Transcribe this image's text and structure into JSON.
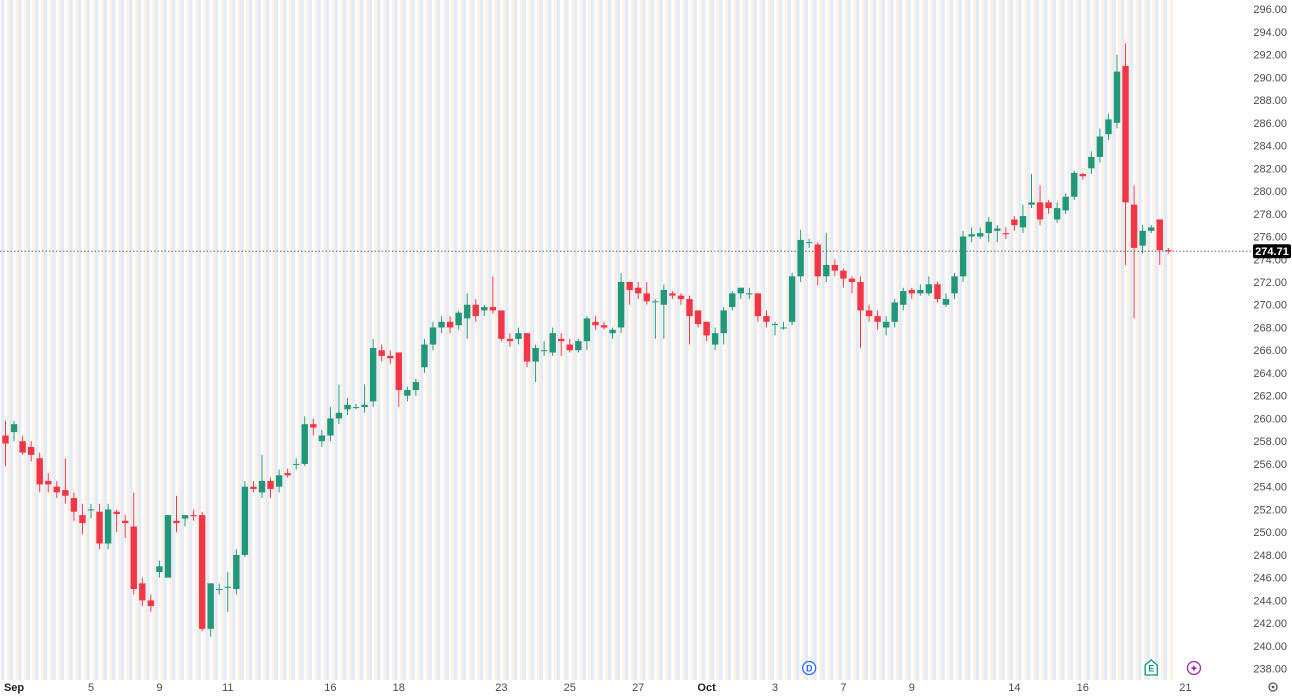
{
  "chart_data": {
    "type": "candlestick",
    "colors": {
      "up": "#22977a",
      "down": "#f23645",
      "band_blue": "#e3ebfb",
      "band_orange": "#fdf1df",
      "last_price_line": "#555555",
      "last_price_badge": "#000000"
    },
    "y_axis": {
      "min": 237,
      "max": 296.8,
      "ticks": [
        "296.00",
        "294.00",
        "292.00",
        "290.00",
        "288.00",
        "286.00",
        "284.00",
        "282.00",
        "280.00",
        "278.00",
        "276.00",
        "274.00",
        "272.00",
        "270.00",
        "268.00",
        "266.00",
        "264.00",
        "262.00",
        "260.00",
        "258.00",
        "256.00",
        "254.00",
        "252.00",
        "250.00",
        "248.00",
        "246.00",
        "244.00",
        "242.00",
        "240.00",
        "238.00"
      ]
    },
    "x_axis": {
      "labels": [
        {
          "text": "Sep",
          "bar": 1,
          "bold": true
        },
        {
          "text": "5",
          "bar": 10
        },
        {
          "text": "9",
          "bar": 18
        },
        {
          "text": "11",
          "bar": 26
        },
        {
          "text": "16",
          "bar": 38
        },
        {
          "text": "18",
          "bar": 46
        },
        {
          "text": "23",
          "bar": 58
        },
        {
          "text": "25",
          "bar": 66
        },
        {
          "text": "27",
          "bar": 74
        },
        {
          "text": "Oct",
          "bar": 82,
          "bold": true
        },
        {
          "text": "3",
          "bar": 90
        },
        {
          "text": "7",
          "bar": 98
        },
        {
          "text": "9",
          "bar": 106
        },
        {
          "text": "14",
          "bar": 118
        },
        {
          "text": "16",
          "bar": 126
        },
        {
          "text": "21",
          "bar": 138
        }
      ]
    },
    "last_price": "274.71",
    "last_price_value": 274.71,
    "event_markers": [
      {
        "text": "D",
        "bar": 94,
        "color": "#2962ff"
      },
      {
        "text": "E",
        "bar": 134,
        "color": "#089981"
      },
      {
        "text": "✦",
        "bar": 139,
        "color": "#9c27b0"
      }
    ],
    "candles": [
      [
        258.5,
        257.8,
        259.8,
        255.8
      ],
      [
        258.8,
        259.5,
        259.8,
        258.0
      ],
      [
        258.0,
        257.0,
        258.5,
        256.8
      ],
      [
        257.5,
        256.8,
        258.0,
        256.2
      ],
      [
        256.5,
        254.2,
        257.0,
        253.5
      ],
      [
        254.5,
        254.2,
        255.2,
        253.5
      ],
      [
        254.0,
        253.5,
        254.5,
        253.0
      ],
      [
        253.7,
        253.2,
        256.5,
        252.5
      ],
      [
        253.0,
        251.8,
        253.5,
        251.0
      ],
      [
        251.5,
        250.8,
        252.5,
        249.8
      ],
      [
        252.0,
        252.0,
        252.5,
        251.2
      ],
      [
        251.8,
        249.0,
        252.5,
        248.5
      ],
      [
        249.0,
        252.0,
        252.5,
        248.5
      ],
      [
        251.8,
        251.6,
        252.0,
        250.0
      ],
      [
        251.0,
        250.8,
        251.5,
        249.5
      ],
      [
        250.5,
        245.0,
        253.5,
        244.5
      ],
      [
        245.5,
        244.0,
        246.0,
        243.5
      ],
      [
        244.0,
        243.5,
        244.5,
        243.0
      ],
      [
        246.5,
        247.0,
        247.5,
        246.0
      ],
      [
        246.0,
        251.5,
        251.5,
        246.0
      ],
      [
        251.0,
        250.8,
        253.2,
        250.0
      ],
      [
        251.2,
        251.5,
        251.5,
        250.5
      ],
      [
        251.5,
        251.4,
        252.0,
        251.0
      ],
      [
        251.5,
        241.5,
        251.8,
        241.3
      ],
      [
        241.5,
        245.5,
        245.5,
        240.8
      ],
      [
        245.0,
        245.0,
        245.5,
        244.5
      ],
      [
        245.2,
        245.2,
        246.5,
        243.0
      ],
      [
        245.0,
        248.0,
        248.5,
        244.5
      ],
      [
        248.0,
        254.0,
        254.5,
        247.8
      ],
      [
        254.0,
        253.8,
        254.5,
        253.5
      ],
      [
        253.5,
        254.5,
        256.8,
        253.0
      ],
      [
        254.5,
        253.8,
        254.8,
        253.0
      ],
      [
        254.0,
        255.0,
        255.5,
        253.5
      ],
      [
        255.2,
        255.0,
        255.6,
        254.8
      ],
      [
        256.0,
        256.0,
        256.5,
        255.5
      ],
      [
        256.0,
        259.5,
        260.2,
        255.8
      ],
      [
        259.5,
        259.2,
        260.0,
        258.5
      ],
      [
        258.0,
        258.5,
        259.0,
        257.5
      ],
      [
        258.5,
        260.0,
        261.0,
        258.0
      ],
      [
        260.0,
        260.5,
        263.0,
        259.5
      ],
      [
        260.8,
        261.2,
        261.8,
        260.3
      ],
      [
        261.0,
        261.0,
        261.3,
        260.8
      ],
      [
        261.0,
        261.2,
        263.0,
        260.5
      ],
      [
        261.5,
        266.2,
        267.0,
        261.0
      ],
      [
        266.0,
        265.5,
        266.5,
        265.0
      ],
      [
        265.5,
        265.3,
        266.0,
        264.8
      ],
      [
        265.8,
        262.5,
        265.8,
        261.0
      ],
      [
        262.0,
        262.5,
        262.8,
        261.5
      ],
      [
        262.5,
        263.2,
        263.5,
        262.0
      ],
      [
        264.5,
        266.5,
        267.0,
        264.0
      ],
      [
        266.5,
        268.0,
        268.5,
        266.0
      ],
      [
        268.0,
        268.5,
        269.0,
        267.5
      ],
      [
        268.5,
        268.0,
        269.0,
        267.5
      ],
      [
        268.2,
        269.3,
        269.5,
        267.8
      ],
      [
        268.8,
        270.0,
        271.0,
        267.0
      ],
      [
        270.0,
        269.0,
        270.5,
        268.5
      ],
      [
        269.5,
        269.8,
        270.0,
        269.0
      ],
      [
        269.8,
        269.5,
        272.5,
        269.2
      ],
      [
        269.5,
        267.0,
        269.5,
        266.8
      ],
      [
        267.0,
        266.8,
        267.5,
        266.3
      ],
      [
        267.0,
        267.5,
        268.0,
        266.5
      ],
      [
        267.5,
        265.0,
        267.5,
        264.5
      ],
      [
        265.0,
        266.2,
        266.5,
        263.2
      ],
      [
        266.0,
        266.0,
        266.8,
        265.5
      ],
      [
        265.8,
        267.5,
        268.0,
        265.5
      ],
      [
        267.0,
        266.8,
        267.5,
        265.5
      ],
      [
        266.5,
        266.0,
        267.0,
        265.8
      ],
      [
        266.0,
        266.8,
        267.0,
        265.8
      ],
      [
        266.8,
        268.8,
        269.0,
        266.0
      ],
      [
        268.5,
        268.2,
        269.0,
        267.8
      ],
      [
        268.2,
        268.0,
        268.5,
        267.8
      ],
      [
        267.5,
        267.8,
        268.0,
        267.0
      ],
      [
        268.0,
        272.0,
        272.8,
        267.5
      ],
      [
        272.0,
        271.3,
        271.8,
        270.0
      ],
      [
        271.5,
        271.0,
        272.0,
        270.5
      ],
      [
        271.0,
        270.3,
        272.0,
        270.0
      ],
      [
        270.3,
        270.3,
        270.5,
        267.0
      ],
      [
        270.0,
        271.3,
        271.8,
        267.0
      ],
      [
        271.0,
        270.8,
        271.2,
        270.5
      ],
      [
        270.8,
        270.5,
        271.0,
        270.0
      ],
      [
        270.5,
        269.0,
        270.8,
        266.5
      ],
      [
        269.5,
        268.3,
        269.5,
        268.0
      ],
      [
        268.5,
        267.3,
        268.5,
        266.8
      ],
      [
        266.5,
        267.5,
        268.0,
        266.0
      ],
      [
        267.5,
        269.5,
        269.8,
        266.5
      ],
      [
        269.8,
        271.0,
        271.2,
        269.5
      ],
      [
        271.0,
        271.5,
        271.5,
        270.5
      ],
      [
        271.0,
        271.0,
        271.5,
        270.5
      ],
      [
        271.0,
        269.0,
        271.0,
        268.5
      ],
      [
        269.0,
        268.5,
        269.5,
        268.0
      ],
      [
        268.3,
        268.3,
        268.5,
        267.3
      ],
      [
        268.0,
        268.0,
        268.5,
        267.8
      ],
      [
        268.5,
        272.5,
        272.8,
        268.2
      ],
      [
        272.5,
        275.7,
        276.6,
        272.0
      ],
      [
        275.5,
        275.5,
        275.8,
        275.0
      ],
      [
        275.3,
        272.5,
        275.5,
        271.7
      ],
      [
        272.5,
        273.5,
        276.3,
        272.0
      ],
      [
        273.5,
        273.0,
        274.0,
        272.5
      ],
      [
        273.0,
        272.3,
        273.2,
        271.5
      ],
      [
        272.3,
        272.0,
        272.5,
        271.0
      ],
      [
        272.0,
        269.5,
        272.5,
        266.2
      ],
      [
        269.5,
        269.0,
        270.0,
        268.5
      ],
      [
        269.0,
        268.5,
        269.5,
        267.8
      ],
      [
        268.0,
        268.5,
        269.0,
        267.3
      ],
      [
        268.5,
        270.2,
        270.5,
        268.0
      ],
      [
        270.0,
        271.2,
        271.5,
        269.5
      ],
      [
        271.3,
        271.0,
        271.5,
        270.5
      ],
      [
        271.0,
        271.3,
        271.8,
        270.8
      ],
      [
        271.0,
        271.8,
        272.5,
        270.8
      ],
      [
        271.8,
        270.5,
        272.0,
        270.2
      ],
      [
        270.0,
        270.5,
        271.0,
        269.8
      ],
      [
        271.0,
        272.5,
        272.8,
        270.5
      ],
      [
        272.5,
        276.0,
        276.5,
        272.0
      ],
      [
        276.0,
        276.2,
        276.8,
        275.5
      ],
      [
        276.0,
        276.3,
        276.8,
        275.8
      ],
      [
        276.3,
        277.3,
        277.7,
        275.5
      ],
      [
        276.5,
        276.7,
        277.0,
        275.5
      ],
      [
        276.3,
        276.2,
        276.8,
        275.8
      ],
      [
        277.5,
        277.0,
        277.8,
        276.5
      ],
      [
        276.8,
        277.8,
        278.8,
        276.3
      ],
      [
        278.8,
        279.0,
        281.5,
        278.5
      ],
      [
        279.0,
        277.5,
        280.5,
        277.0
      ],
      [
        279.0,
        278.5,
        279.2,
        278.0
      ],
      [
        277.5,
        278.5,
        279.0,
        277.2
      ],
      [
        278.3,
        279.5,
        279.8,
        278.0
      ],
      [
        279.5,
        281.6,
        281.8,
        279.2
      ],
      [
        281.5,
        281.3,
        281.6,
        281.0
      ],
      [
        282.0,
        283.0,
        283.5,
        281.5
      ],
      [
        283.0,
        284.8,
        285.5,
        282.5
      ],
      [
        285.0,
        286.3,
        286.8,
        284.5
      ],
      [
        286.0,
        290.5,
        292.0,
        285.5
      ],
      [
        291.0,
        279.0,
        293.0,
        273.5
      ],
      [
        278.8,
        275.0,
        280.5,
        268.8
      ],
      [
        275.2,
        276.5,
        277.0,
        274.5
      ],
      [
        276.5,
        276.8,
        277.0,
        276.3
      ],
      [
        277.5,
        274.8,
        277.5,
        273.5
      ],
      [
        274.8,
        274.7,
        275.0,
        274.5
      ]
    ]
  }
}
